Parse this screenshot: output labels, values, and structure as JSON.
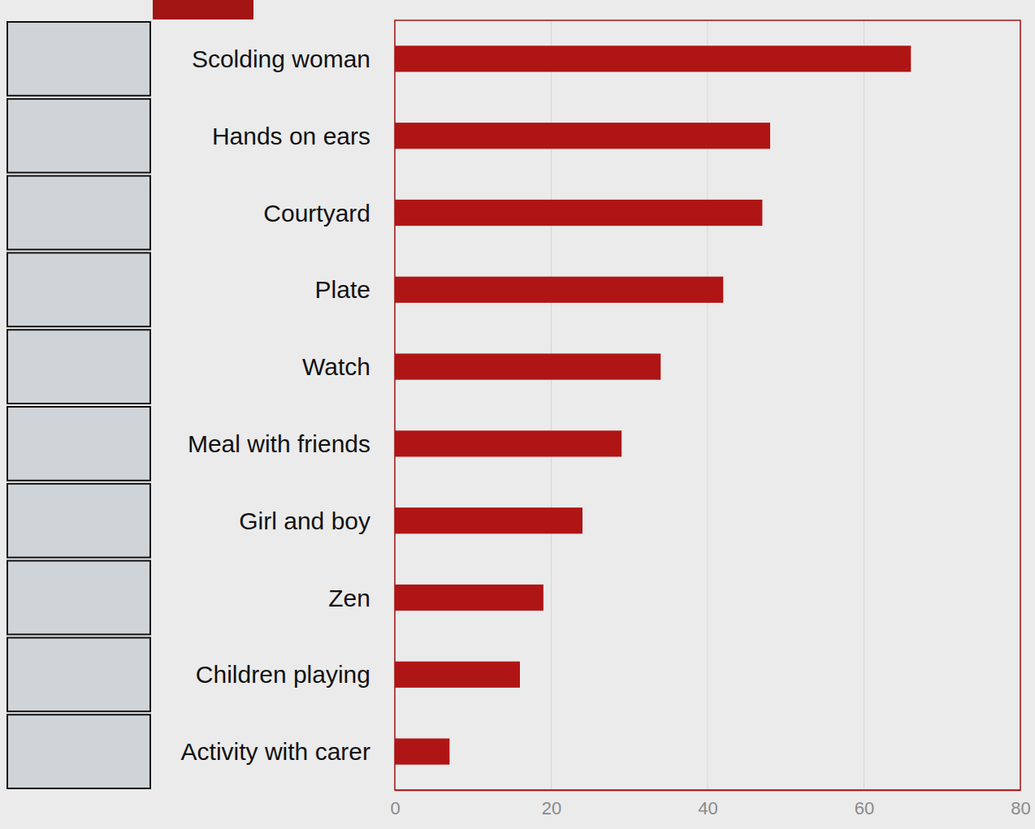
{
  "chart_data": {
    "type": "bar",
    "orientation": "horizontal",
    "categories": [
      "Scolding woman",
      "Hands on ears",
      "Courtyard",
      "Plate",
      "Watch",
      "Meal with friends",
      "Girl and boy",
      "Zen",
      "Children playing",
      "Activity with carer"
    ],
    "values": [
      66,
      48,
      47,
      42,
      34,
      29,
      24,
      19,
      16,
      7
    ],
    "color": "#b01515",
    "xlim": [
      0,
      80
    ],
    "xticks": [
      0,
      20,
      40,
      60,
      80
    ],
    "grid": true
  }
}
